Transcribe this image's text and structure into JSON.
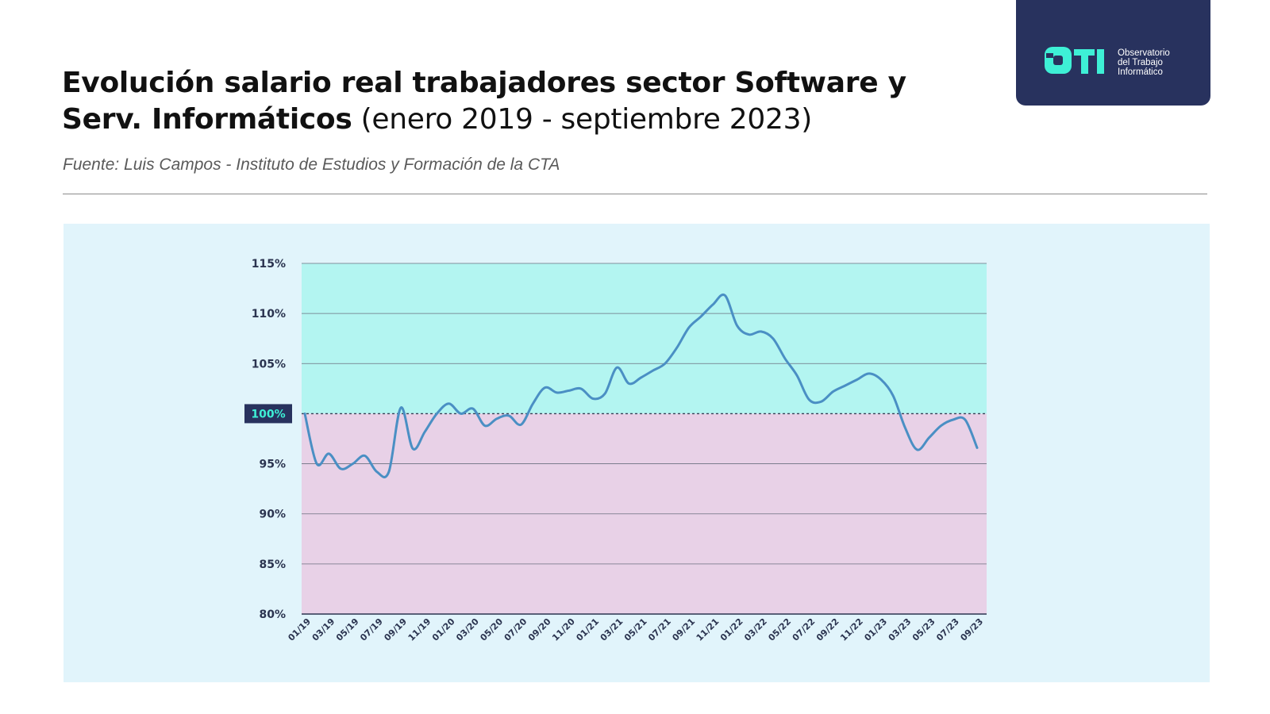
{
  "header": {
    "title_bold": "Evolución salario real trabajadores sector Software y Serv. Informáticos",
    "title_light": "(enero 2019 - septiembre 2023)",
    "source": "Fuente: Luis Campos - Instituto de Estudios y Formación de la CTA"
  },
  "logo": {
    "mark": "OTI",
    "line1": "Observatorio",
    "line2": "del Trabajo",
    "line3": "Informático"
  },
  "colors": {
    "above_band": "#b3f5f1",
    "below_band": "#e8d1e7",
    "line": "#4a8fc4",
    "baseline_label_bg": "#28325e",
    "baseline_label_text": "#3ef0d6",
    "logo_bg": "#28325e",
    "logo_mark": "#3ef0d6"
  },
  "chart_data": {
    "type": "line",
    "title": "Evolución salario real trabajadores sector Software y Serv. Informáticos (enero 2019 - septiembre 2023)",
    "xlabel": "",
    "ylabel": "",
    "ylim": [
      80,
      115
    ],
    "yticks": [
      80,
      85,
      90,
      95,
      100,
      105,
      110,
      115
    ],
    "ytick_labels": [
      "80%",
      "85%",
      "90%",
      "95%",
      "100%",
      "105%",
      "110%",
      "115%"
    ],
    "baseline": 100,
    "baseline_label": "100%",
    "grid": true,
    "legend": "none",
    "xtick_labels": [
      "01/19",
      "03/19",
      "05/19",
      "07/19",
      "09/19",
      "11/19",
      "01/20",
      "03/20",
      "05/20",
      "07/20",
      "09/20",
      "11/20",
      "01/21",
      "03/21",
      "05/21",
      "07/21",
      "09/21",
      "11/21",
      "01/22",
      "03/22",
      "05/22",
      "07/22",
      "09/22",
      "11/22",
      "01/23",
      "03/23",
      "05/23",
      "07/23",
      "09/23"
    ],
    "x": [
      "01/19",
      "02/19",
      "03/19",
      "04/19",
      "05/19",
      "06/19",
      "07/19",
      "08/19",
      "09/19",
      "10/19",
      "11/19",
      "12/19",
      "01/20",
      "02/20",
      "03/20",
      "04/20",
      "05/20",
      "06/20",
      "07/20",
      "08/20",
      "09/20",
      "10/20",
      "11/20",
      "12/20",
      "01/21",
      "02/21",
      "03/21",
      "04/21",
      "05/21",
      "06/21",
      "07/21",
      "08/21",
      "09/21",
      "10/21",
      "11/21",
      "12/21",
      "01/22",
      "02/22",
      "03/22",
      "04/22",
      "05/22",
      "06/22",
      "07/22",
      "08/22",
      "09/22",
      "10/22",
      "11/22",
      "12/22",
      "01/23",
      "02/23",
      "03/23",
      "04/23",
      "05/23",
      "06/23",
      "07/23",
      "08/23",
      "09/23"
    ],
    "series": [
      {
        "values": [
          100.0,
          95.0,
          96.0,
          94.5,
          95.0,
          95.8,
          94.2,
          94.2,
          100.6,
          96.5,
          98.2,
          100.0,
          101.0,
          100.0,
          100.5,
          98.8,
          99.5,
          99.8,
          98.9,
          101.0,
          102.6,
          102.1,
          102.3,
          102.5,
          101.5,
          102.0,
          104.6,
          103.0,
          103.6,
          104.3,
          105.0,
          106.6,
          108.6,
          109.7,
          110.9,
          111.8,
          108.8,
          107.9,
          108.2,
          107.5,
          105.5,
          103.8,
          101.4,
          101.2,
          102.2,
          102.8,
          103.4,
          104.0,
          103.4,
          101.8,
          98.6,
          96.4,
          97.6,
          98.8,
          99.4,
          99.4,
          96.6
        ]
      }
    ]
  }
}
